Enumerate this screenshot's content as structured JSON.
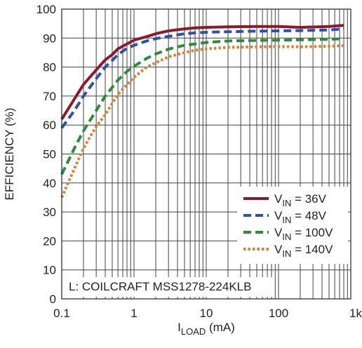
{
  "chart_data": {
    "type": "line",
    "title": "",
    "xlabel_main": "I",
    "xlabel_sub": "LOAD",
    "xlabel_unit": " (mA)",
    "ylabel": "EFFICIENCY (%)",
    "xscale": "log",
    "xlim": [
      0.1,
      1000
    ],
    "ylim": [
      0,
      100
    ],
    "x_ticks": [
      {
        "value": 0.1,
        "label": "0.1"
      },
      {
        "value": 1,
        "label": "1"
      },
      {
        "value": 10,
        "label": "10"
      },
      {
        "value": 100,
        "label": "100"
      },
      {
        "value": 1000,
        "label": "1k"
      }
    ],
    "y_ticks": [
      0,
      10,
      20,
      30,
      40,
      50,
      60,
      70,
      80,
      90,
      100
    ],
    "grid": true,
    "legend_position": "bottom-right",
    "annotation": "L: COILCRAFT MSS1278-224KLB",
    "series": [
      {
        "label_main": "V",
        "label_sub": "IN",
        "label_rest": " = 36V",
        "color": "#8b1a2b",
        "style": "solid",
        "x": [
          0.1,
          0.15,
          0.2,
          0.3,
          0.4,
          0.5,
          0.6,
          0.8,
          1,
          1.5,
          2,
          3,
          5,
          7,
          10,
          20,
          50,
          100,
          200,
          500,
          800
        ],
        "y": [
          62,
          69,
          74,
          79,
          82.5,
          84.3,
          86.3,
          88,
          89.3,
          90.5,
          91.5,
          92.5,
          93.2,
          93.5,
          93.7,
          93.9,
          94,
          94,
          93.7,
          94,
          94.4
        ]
      },
      {
        "label_main": "V",
        "label_sub": "IN",
        "label_rest": " = 48V",
        "color": "#2f4fa8",
        "style": "dashed",
        "x": [
          0.1,
          0.15,
          0.2,
          0.3,
          0.4,
          0.5,
          0.6,
          0.8,
          1,
          1.5,
          2,
          3,
          5,
          7,
          10,
          20,
          50,
          100,
          200,
          500,
          800
        ],
        "y": [
          59,
          65,
          70,
          76,
          80,
          82.3,
          84.3,
          86.5,
          87.5,
          89,
          89.8,
          90.6,
          91.5,
          91.8,
          92,
          92.2,
          92.4,
          92.5,
          92.6,
          92.8,
          93.2
        ]
      },
      {
        "label_main": "V",
        "label_sub": "IN",
        "label_rest": " = 100V",
        "color": "#2e8b3a",
        "style": "dashed",
        "x": [
          0.1,
          0.15,
          0.2,
          0.3,
          0.4,
          0.5,
          0.6,
          0.8,
          1,
          1.5,
          2,
          3,
          5,
          7,
          10,
          20,
          50,
          100,
          200,
          500,
          800
        ],
        "y": [
          43,
          52,
          58,
          65,
          70,
          73,
          75.5,
          78.5,
          80.3,
          83,
          84.5,
          86.2,
          87.5,
          88,
          88.5,
          89,
          89.2,
          89.3,
          89.4,
          89.6,
          89.8
        ]
      },
      {
        "label_main": "V",
        "label_sub": "IN",
        "label_rest": " = 140V",
        "color": "#d2843a",
        "style": "dotted",
        "x": [
          0.1,
          0.15,
          0.2,
          0.3,
          0.4,
          0.5,
          0.6,
          0.8,
          1,
          1.5,
          2,
          3,
          5,
          7,
          10,
          20,
          50,
          100,
          200,
          500,
          800
        ],
        "y": [
          35,
          45,
          52,
          59.5,
          63.5,
          67.5,
          70.5,
          74,
          76.5,
          80,
          81.5,
          83.5,
          85,
          85.8,
          86.3,
          86.8,
          87,
          87.1,
          87,
          87.2,
          87.4
        ]
      }
    ]
  }
}
